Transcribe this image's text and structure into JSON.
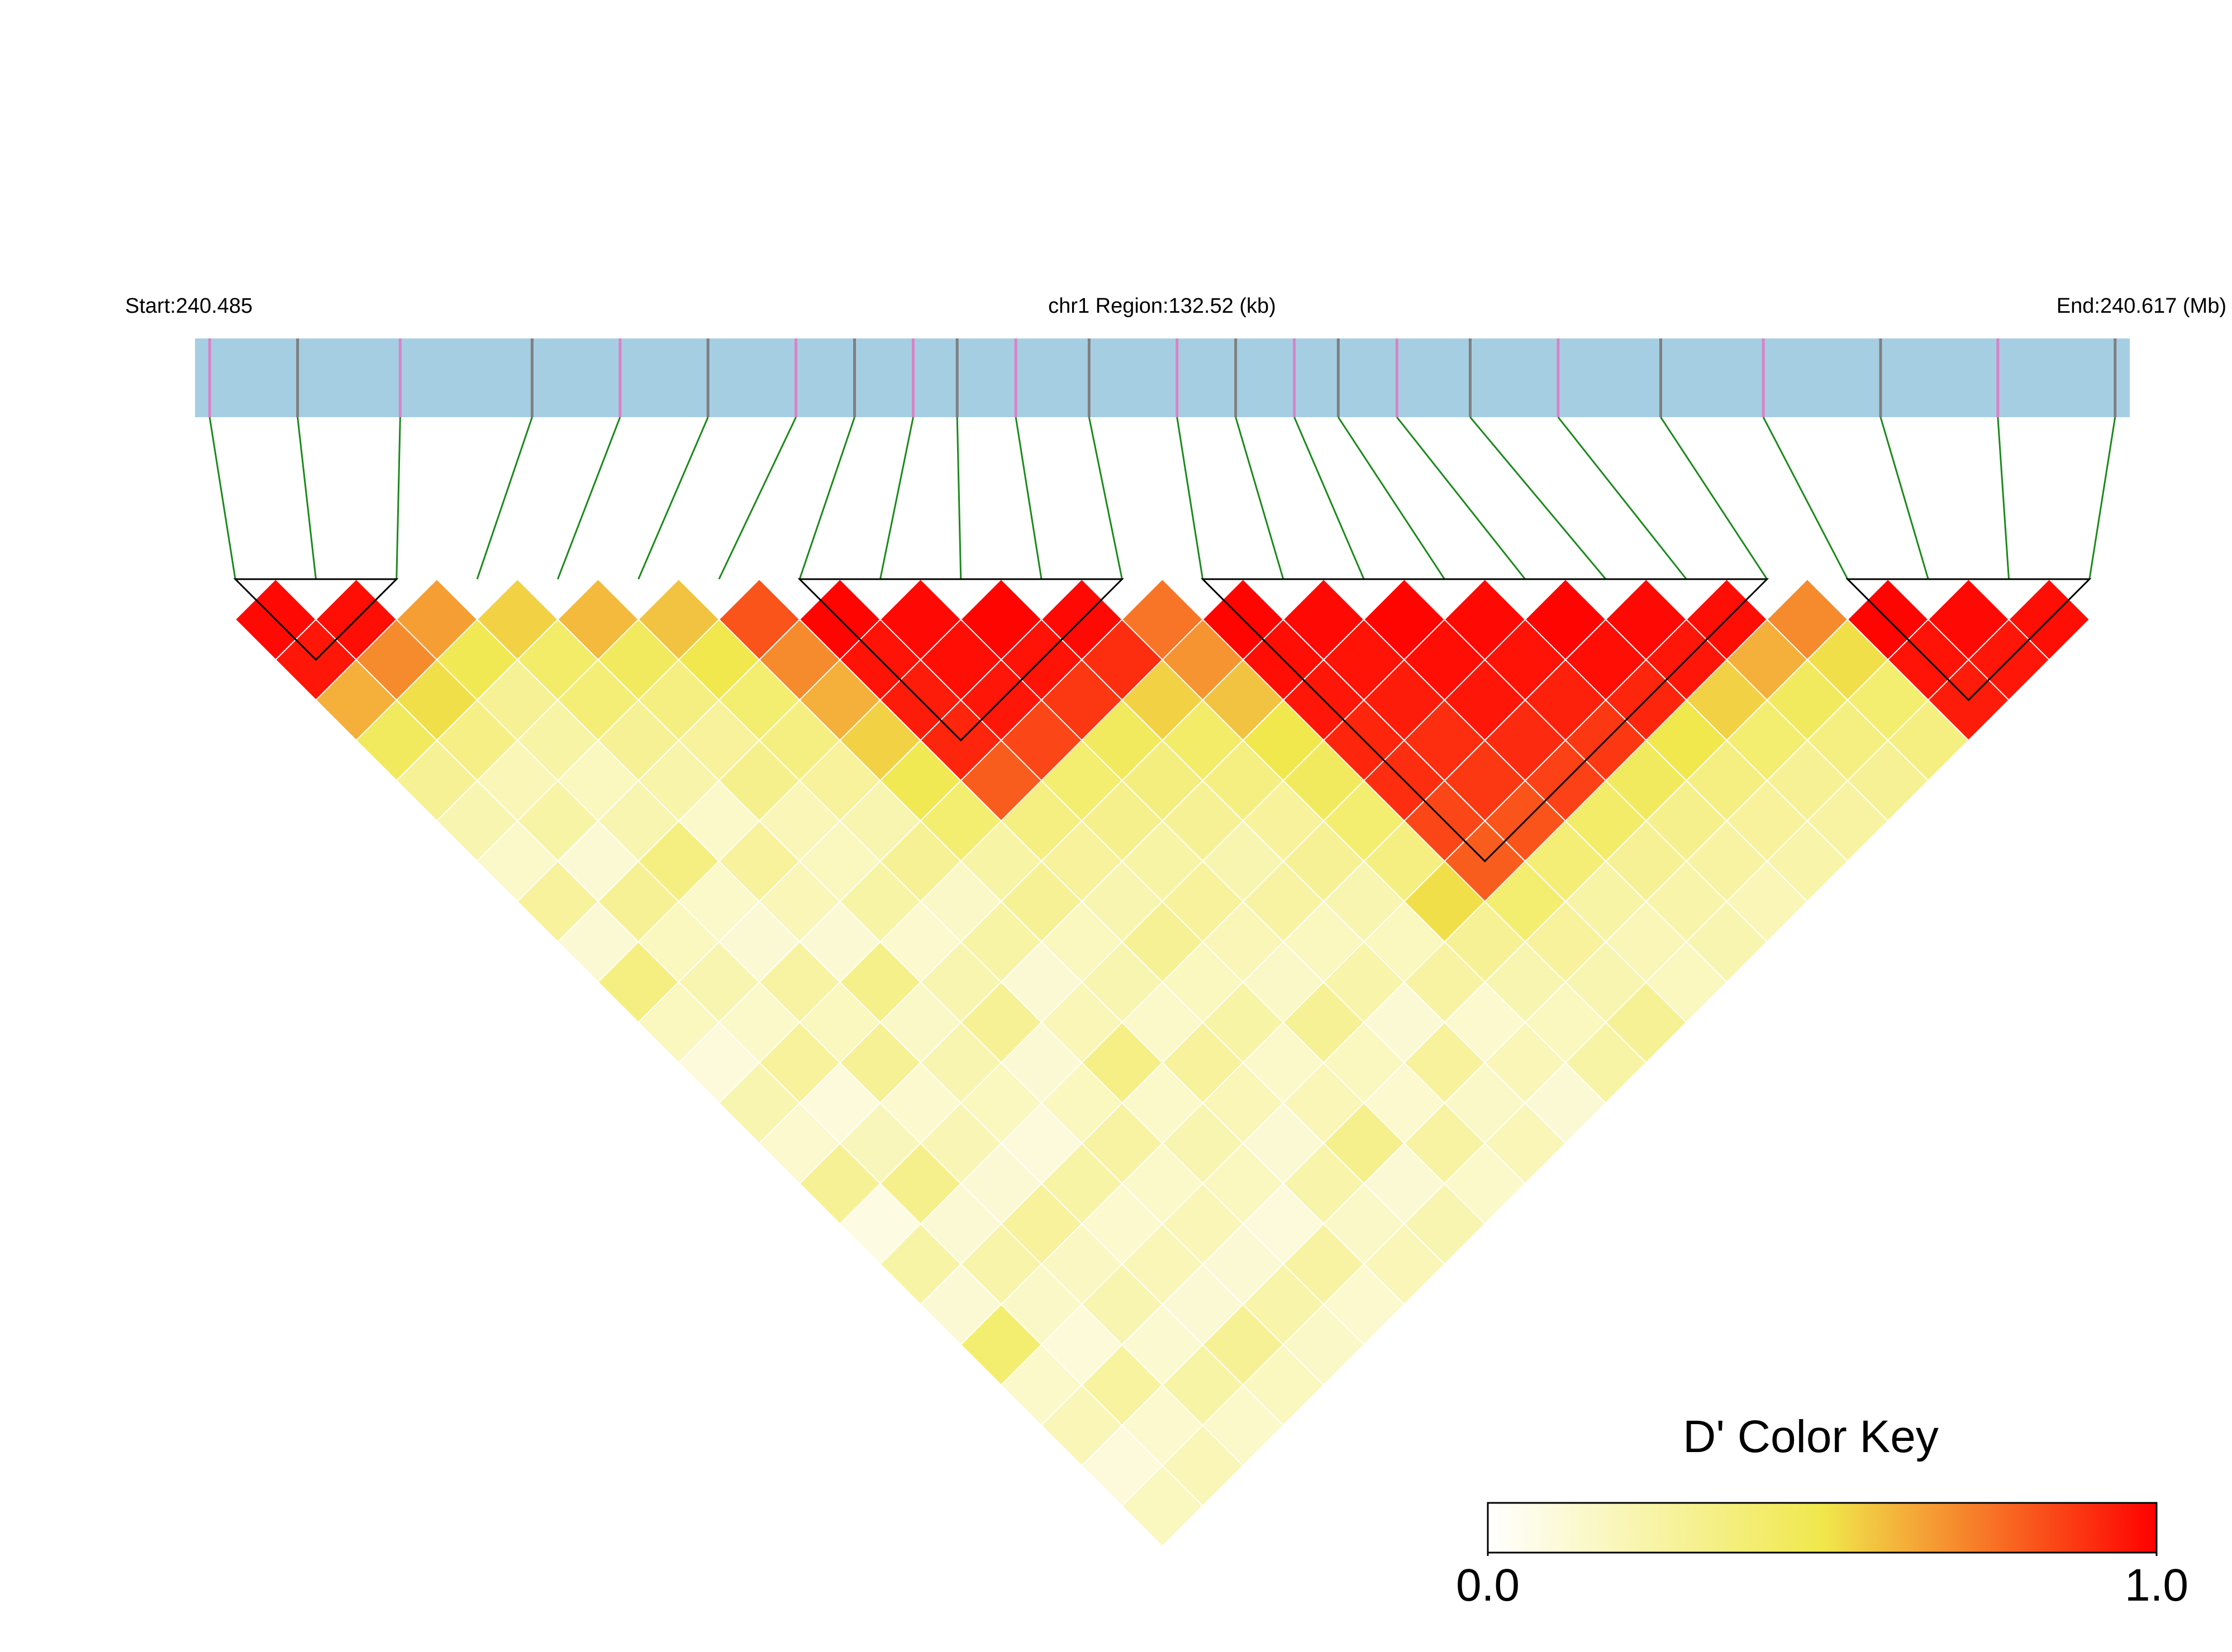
{
  "chart_data": {
    "type": "ld_heatmap",
    "start_label": "Start:240.485",
    "region_label": "chr1 Region:132.52 (kb)",
    "end_label": "End:240.617 (Mb)",
    "xlim": [
      240.485,
      240.617
    ],
    "positions": [
      240.486,
      240.492,
      240.499,
      240.508,
      240.514,
      240.52,
      240.526,
      240.53,
      240.534,
      240.537,
      240.541,
      240.546,
      240.552,
      240.556,
      240.56,
      240.563,
      240.567,
      240.572,
      240.578,
      240.585,
      240.592,
      240.6,
      240.608,
      240.616
    ],
    "bar_color": "#a6cee3",
    "tick_colors": [
      "#d982c8",
      "#7f7f7f"
    ],
    "link_color": "#1a8a1a",
    "ld": [
      [
        0.98,
        0.95,
        0.62,
        0.45,
        0.3,
        0.22,
        0.15,
        0.28,
        0.12,
        0.35,
        0.18,
        0.1,
        0.22,
        0.14,
        0.3,
        0.08,
        0.25,
        0.12,
        0.4,
        0.15,
        0.2,
        0.1,
        0.18
      ],
      [
        0.97,
        0.7,
        0.52,
        0.34,
        0.2,
        0.25,
        0.12,
        0.3,
        0.18,
        0.22,
        0.15,
        0.28,
        0.1,
        0.19,
        0.32,
        0.12,
        0.24,
        0.16,
        0.11,
        0.27,
        0.14,
        0.2
      ],
      [
        0.66,
        0.48,
        0.3,
        0.25,
        0.18,
        0.22,
        0.35,
        0.15,
        0.12,
        0.26,
        0.18,
        0.3,
        0.14,
        0.21,
        0.12,
        0.28,
        0.17,
        0.22,
        0.13,
        0.25,
        0.15
      ],
      [
        0.55,
        0.42,
        0.38,
        0.3,
        0.24,
        0.15,
        0.28,
        0.2,
        0.12,
        0.33,
        0.16,
        0.22,
        0.18,
        0.1,
        0.25,
        0.14,
        0.2,
        0.12,
        0.3,
        0.18
      ],
      [
        0.6,
        0.45,
        0.35,
        0.28,
        0.32,
        0.2,
        0.18,
        0.25,
        0.14,
        0.22,
        0.3,
        0.12,
        0.18,
        0.26,
        0.15,
        0.2,
        0.12,
        0.24,
        0.16
      ],
      [
        0.58,
        0.5,
        0.4,
        0.35,
        0.28,
        0.22,
        0.3,
        0.16,
        0.25,
        0.12,
        0.2,
        0.34,
        0.15,
        0.22,
        0.18,
        0.1,
        0.26,
        0.14
      ],
      [
        0.82,
        0.7,
        0.62,
        0.55,
        0.48,
        0.4,
        0.25,
        0.3,
        0.18,
        0.22,
        0.15,
        0.28,
        0.2,
        0.12,
        0.24,
        0.16,
        0.2
      ],
      [
        0.99,
        0.96,
        0.94,
        0.92,
        0.8,
        0.35,
        0.28,
        0.22,
        0.3,
        0.18,
        0.25,
        0.15,
        0.2,
        0.32,
        0.12,
        0.22
      ],
      [
        0.98,
        0.97,
        0.95,
        0.85,
        0.4,
        0.32,
        0.25,
        0.28,
        0.2,
        0.16,
        0.3,
        0.18,
        0.14,
        0.26,
        0.15
      ],
      [
        0.99,
        0.96,
        0.88,
        0.45,
        0.36,
        0.3,
        0.22,
        0.26,
        0.18,
        0.24,
        0.12,
        0.28,
        0.16,
        0.2
      ],
      [
        0.98,
        0.9,
        0.55,
        0.42,
        0.35,
        0.28,
        0.3,
        0.22,
        0.18,
        0.26,
        0.14,
        0.2,
        0.12
      ],
      [
        0.75,
        0.68,
        0.58,
        0.5,
        0.45,
        0.4,
        0.35,
        0.52,
        0.3,
        0.22,
        0.18,
        0.25
      ],
      [
        0.99,
        0.97,
        0.95,
        0.92,
        0.9,
        0.85,
        0.8,
        0.4,
        0.28,
        0.22,
        0.3
      ],
      [
        0.98,
        0.96,
        0.94,
        0.9,
        0.88,
        0.82,
        0.38,
        0.25,
        0.2,
        0.18
      ],
      [
        0.99,
        0.97,
        0.95,
        0.91,
        0.86,
        0.42,
        0.3,
        0.24,
        0.22
      ],
      [
        0.98,
        0.96,
        0.93,
        0.88,
        0.45,
        0.32,
        0.26,
        0.2
      ],
      [
        0.99,
        0.97,
        0.92,
        0.5,
        0.35,
        0.28,
        0.24
      ],
      [
        0.98,
        0.95,
        0.55,
        0.4,
        0.3,
        0.26
      ],
      [
        0.97,
        0.62,
        0.45,
        0.35,
        0.3
      ],
      [
        0.7,
        0.52,
        0.4,
        0.35
      ],
      [
        0.99,
        0.96,
        0.94
      ],
      [
        0.98,
        0.95
      ],
      [
        0.97
      ]
    ],
    "blocks": [
      [
        0,
        2
      ],
      [
        7,
        11
      ],
      [
        12,
        19
      ],
      [
        20,
        23
      ]
    ],
    "color_stops": [
      "#ffffff",
      "#f0e84c",
      "#ff0000"
    ],
    "key_title": "D' Color Key",
    "key_lim": [
      0,
      1
    ],
    "key_ticks": [
      {
        "value": 0,
        "label": "0.0"
      },
      {
        "value": 1,
        "label": "1.0"
      }
    ]
  }
}
